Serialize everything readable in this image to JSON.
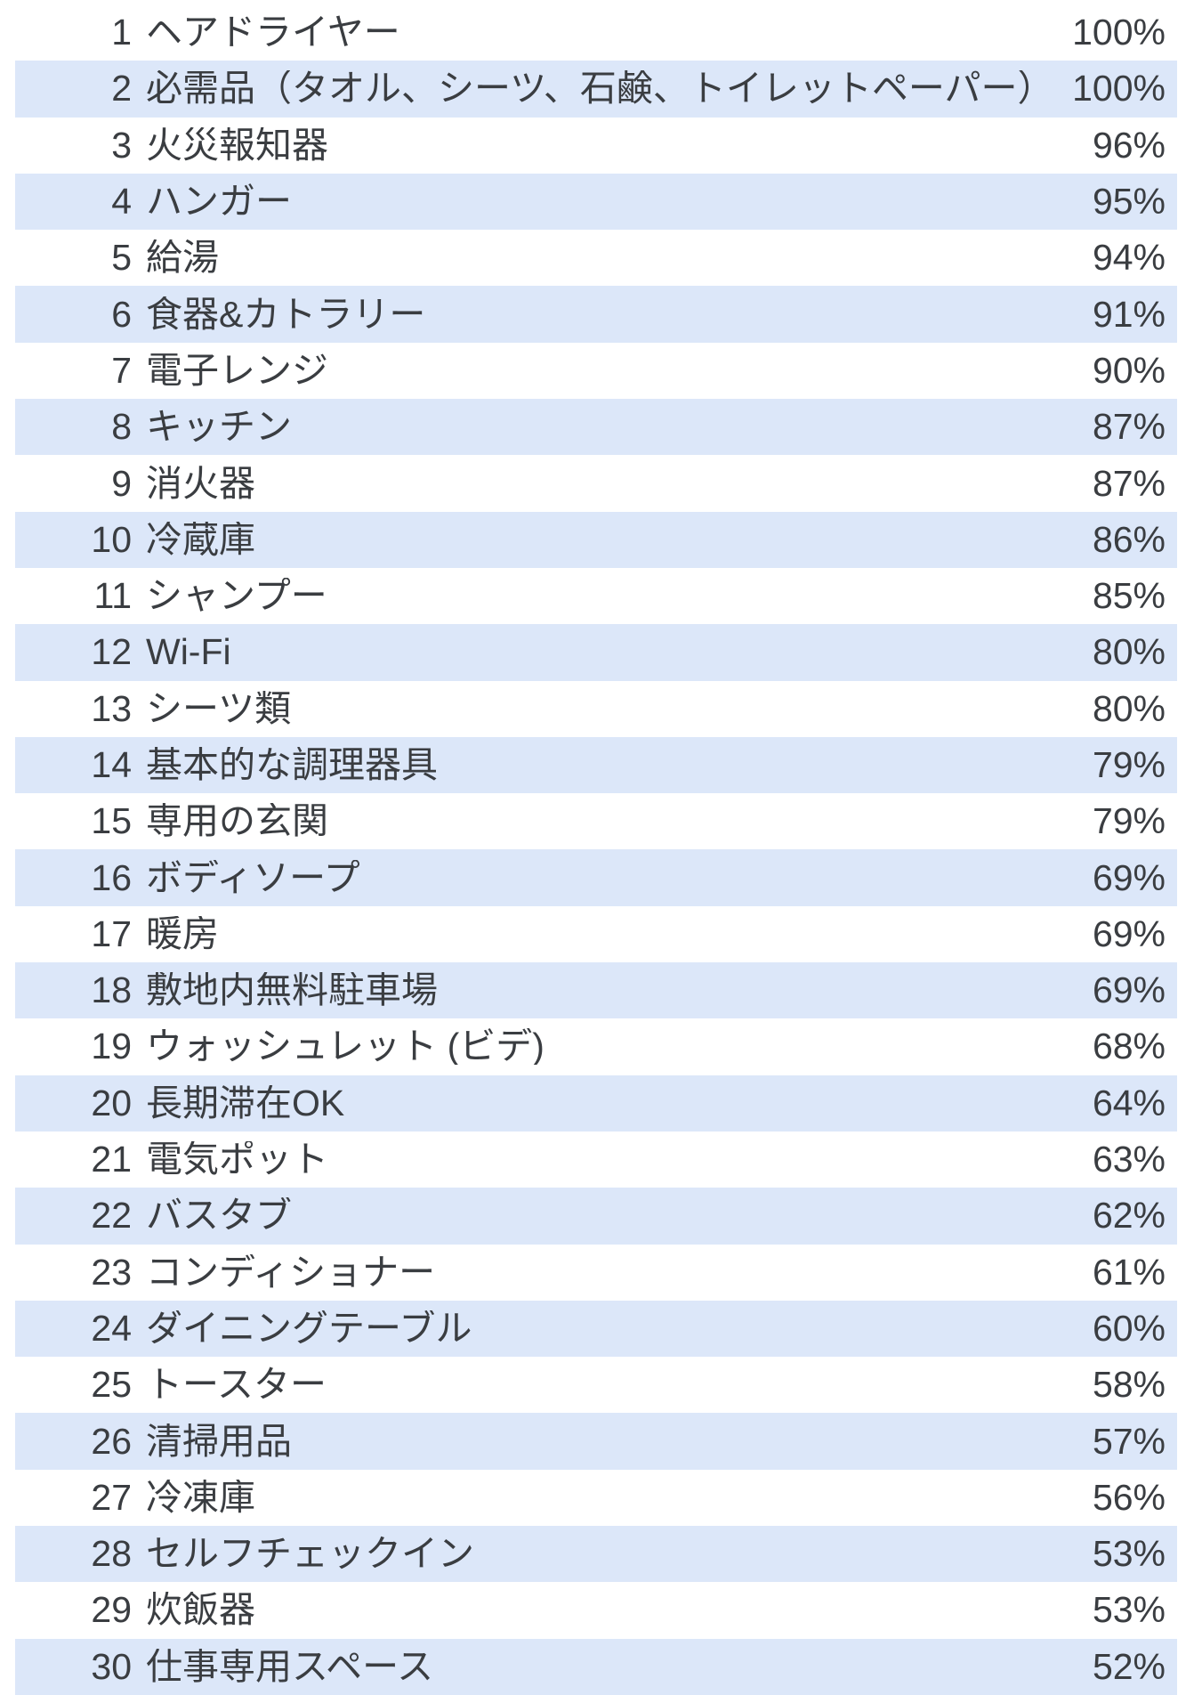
{
  "table": {
    "row_stripe_color": "#dce7f9",
    "text_color": "#3a3d41",
    "rows": [
      {
        "rank": "1",
        "label": "ヘアドライヤー",
        "value": "100%"
      },
      {
        "rank": "2",
        "label": "必需品（タオル、シーツ、石鹸、トイレットペーパー）",
        "value": "100%"
      },
      {
        "rank": "3",
        "label": "火災報知器",
        "value": "96%"
      },
      {
        "rank": "4",
        "label": "ハンガー",
        "value": "95%"
      },
      {
        "rank": "5",
        "label": "給湯",
        "value": "94%"
      },
      {
        "rank": "6",
        "label": "食器&カトラリー",
        "value": "91%"
      },
      {
        "rank": "7",
        "label": "電子レンジ",
        "value": "90%"
      },
      {
        "rank": "8",
        "label": "キッチン",
        "value": "87%"
      },
      {
        "rank": "9",
        "label": "消火器",
        "value": "87%"
      },
      {
        "rank": "10",
        "label": "冷蔵庫",
        "value": "86%"
      },
      {
        "rank": "11",
        "label": "シャンプー",
        "value": "85%"
      },
      {
        "rank": "12",
        "label": "Wi-Fi",
        "value": "80%"
      },
      {
        "rank": "13",
        "label": "シーツ類",
        "value": "80%"
      },
      {
        "rank": "14",
        "label": "基本的な調理器具",
        "value": "79%"
      },
      {
        "rank": "15",
        "label": "専用の玄関",
        "value": "79%"
      },
      {
        "rank": "16",
        "label": "ボディソープ",
        "value": "69%"
      },
      {
        "rank": "17",
        "label": "暖房",
        "value": "69%"
      },
      {
        "rank": "18",
        "label": "敷地内無料駐車場",
        "value": "69%"
      },
      {
        "rank": "19",
        "label": "ウォッシュレット (ビデ)",
        "value": "68%"
      },
      {
        "rank": "20",
        "label": "長期滞在OK",
        "value": "64%"
      },
      {
        "rank": "21",
        "label": "電気ポット",
        "value": "63%"
      },
      {
        "rank": "22",
        "label": "バスタブ",
        "value": "62%"
      },
      {
        "rank": "23",
        "label": "コンディショナー",
        "value": "61%"
      },
      {
        "rank": "24",
        "label": "ダイニングテーブル",
        "value": "60%"
      },
      {
        "rank": "25",
        "label": "トースター",
        "value": "58%"
      },
      {
        "rank": "26",
        "label": "清掃用品",
        "value": "57%"
      },
      {
        "rank": "27",
        "label": "冷凍庫",
        "value": "56%"
      },
      {
        "rank": "28",
        "label": "セルフチェックイン",
        "value": "53%"
      },
      {
        "rank": "29",
        "label": "炊飯器",
        "value": "53%"
      },
      {
        "rank": "30",
        "label": "仕事専用スペース",
        "value": "52%"
      }
    ]
  },
  "chart_data": {
    "type": "table",
    "title": "",
    "categories": [
      "ヘアドライヤー",
      "必需品（タオル、シーツ、石鹸、トイレットペーパー）",
      "火災報知器",
      "ハンガー",
      "給湯",
      "食器&カトラリー",
      "電子レンジ",
      "キッチン",
      "消火器",
      "冷蔵庫",
      "シャンプー",
      "Wi-Fi",
      "シーツ類",
      "基本的な調理器具",
      "専用の玄関",
      "ボディソープ",
      "暖房",
      "敷地内無料駐車場",
      "ウォッシュレット (ビデ)",
      "長期滞在OK",
      "電気ポット",
      "バスタブ",
      "コンディショナー",
      "ダイニングテーブル",
      "トースター",
      "清掃用品",
      "冷凍庫",
      "セルフチェックイン",
      "炊飯器",
      "仕事専用スペース"
    ],
    "values": [
      100,
      100,
      96,
      95,
      94,
      91,
      90,
      87,
      87,
      86,
      85,
      80,
      80,
      79,
      79,
      69,
      69,
      69,
      68,
      64,
      63,
      62,
      61,
      60,
      58,
      57,
      56,
      53,
      53,
      52
    ],
    "ranks": [
      1,
      2,
      3,
      4,
      5,
      6,
      7,
      8,
      9,
      10,
      11,
      12,
      13,
      14,
      15,
      16,
      17,
      18,
      19,
      20,
      21,
      22,
      23,
      24,
      25,
      26,
      27,
      28,
      29,
      30
    ],
    "value_unit": "%",
    "layout": {
      "striped_rows": "even ranks highlighted",
      "stripe_color": "#dce7f9",
      "rank_column_align": "right",
      "value_column_align": "right"
    }
  }
}
